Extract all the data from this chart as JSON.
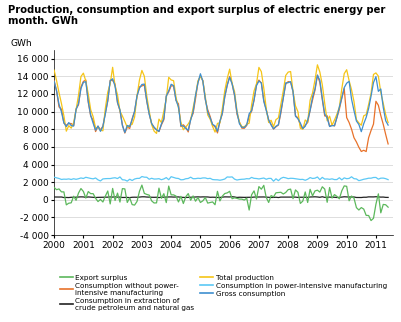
{
  "title": "Production, consumption and export surplus of electric energy per\nmonth. GWh",
  "ylabel": "GWh",
  "ylim": [
    -4000,
    17000
  ],
  "yticks": [
    -4000,
    -2000,
    0,
    2000,
    4000,
    6000,
    8000,
    10000,
    12000,
    14000,
    16000
  ],
  "xlim_start": 2000.0,
  "xlim_end": 2011.583,
  "xtick_years": [
    2000,
    2001,
    2002,
    2003,
    2004,
    2005,
    2006,
    2007,
    2008,
    2009,
    2010,
    2011
  ],
  "colors": {
    "export_surplus": "#5cb85c",
    "consumption_extraction": "#222222",
    "consumption_power_intensive": "#5bc8f5",
    "consumption_without_power_intensive": "#e8722a",
    "total_production": "#f5c518",
    "gross_consumption": "#3e8fcf"
  },
  "n_months": 138,
  "start_year": 2000
}
